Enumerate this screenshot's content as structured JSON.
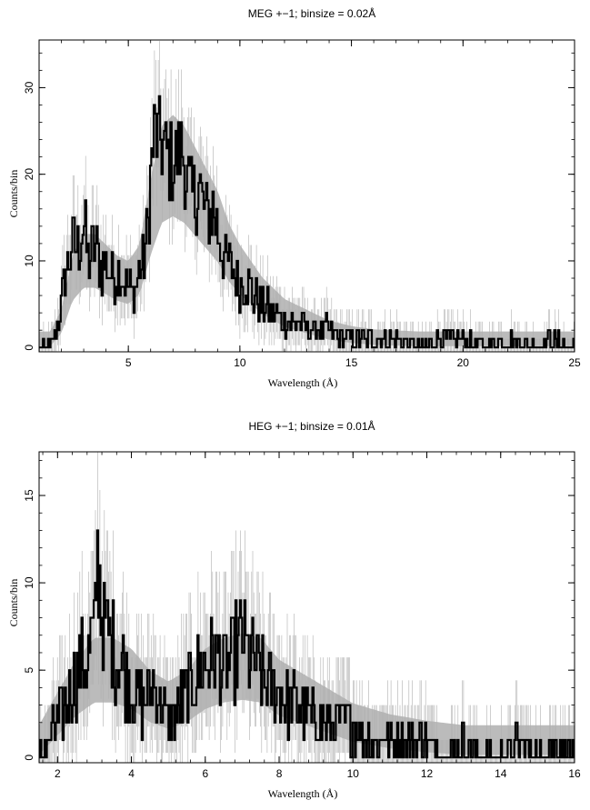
{
  "chart_data": [
    {
      "type": "line",
      "title": "MEG +−1; binsize = 0.02Å",
      "xlabel": "Wavelength (Å)",
      "ylabel": "Counts/bin",
      "xlim": [
        1.0,
        25.0
      ],
      "ylim": [
        -0.5,
        35.5
      ],
      "xticks": [
        5,
        10,
        15,
        20,
        25
      ],
      "xtick_labels": [
        "5",
        "10",
        "15",
        "20",
        "25"
      ],
      "yticks": [
        0,
        10,
        20,
        30
      ],
      "ytick_labels": [
        "0",
        "10",
        "20",
        "30"
      ],
      "grid": false,
      "series": [
        {
          "style": "histogram-step",
          "color": "#000000",
          "x": [
            1.5,
            1.9,
            2.2,
            2.5,
            2.8,
            3.0,
            3.2,
            3.5,
            3.8,
            4.0,
            4.3,
            4.6,
            5.0,
            5.3,
            5.5,
            5.7,
            5.9,
            6.0,
            6.2,
            6.4,
            6.6,
            6.8,
            7.0,
            7.2,
            7.4,
            7.6,
            7.8,
            8.0,
            8.2,
            8.4,
            8.6,
            8.8,
            9.0,
            9.2,
            9.4,
            9.7,
            10.0,
            10.3,
            10.6,
            11.0,
            11.5,
            12.0,
            12.5,
            13.0,
            13.5,
            14.0,
            14.5,
            15.0,
            15.5,
            16.0,
            17.0,
            18.0,
            19.0,
            20.0,
            21.0,
            22.0,
            23.0,
            24.0,
            25.0
          ],
          "values": [
            0,
            3,
            9,
            12,
            11,
            15,
            10,
            12,
            9,
            10,
            8,
            9,
            7,
            6,
            9,
            10,
            14,
            20,
            25,
            24,
            23,
            22,
            21,
            22,
            23,
            20,
            18,
            17,
            19,
            16,
            15,
            16,
            14,
            11,
            10,
            9,
            7,
            8,
            6,
            5,
            4,
            3,
            3,
            2,
            2,
            2,
            1,
            1,
            1,
            1,
            1,
            0,
            1,
            1,
            0,
            1,
            0,
            1,
            0
          ]
        },
        {
          "style": "model-band",
          "color": "#bbbbbb",
          "x": [
            1.5,
            2.0,
            2.5,
            3.0,
            3.5,
            4.0,
            4.5,
            5.0,
            5.5,
            6.0,
            6.5,
            7.0,
            7.5,
            8.0,
            8.5,
            9.0,
            9.5,
            10.0,
            11.0,
            12.0,
            13.0,
            14.0,
            15.0,
            16.0,
            18.0,
            20.0,
            22.0,
            24.0,
            25.0
          ],
          "values": [
            1.0,
            3.0,
            8.0,
            10.0,
            10.0,
            9.0,
            8.0,
            7.5,
            9.0,
            15.0,
            20.0,
            21.0,
            20.0,
            18.0,
            16.0,
            14.0,
            11.0,
            9.0,
            6.0,
            4.0,
            3.0,
            2.0,
            1.5,
            1.2,
            1.0,
            1.0,
            1.0,
            1.0,
            1.0
          ]
        }
      ]
    },
    {
      "type": "line",
      "title": "HEG +−1; binsize = 0.01Å",
      "xlabel": "Wavelength (Å)",
      "ylabel": "Counts/bin",
      "xlim": [
        1.5,
        16.0
      ],
      "ylim": [
        -0.3,
        17.5
      ],
      "xticks": [
        2,
        4,
        6,
        8,
        10,
        12,
        14,
        16
      ],
      "xtick_labels": [
        "2",
        "4",
        "6",
        "8",
        "10",
        "12",
        "14",
        "16"
      ],
      "yticks": [
        0,
        5,
        10,
        15
      ],
      "ytick_labels": [
        "0",
        "5",
        "10",
        "15"
      ],
      "grid": false,
      "series": [
        {
          "style": "histogram-step",
          "color": "#000000",
          "x": [
            1.5,
            1.8,
            2.0,
            2.2,
            2.4,
            2.6,
            2.8,
            3.0,
            3.1,
            3.2,
            3.4,
            3.6,
            3.8,
            4.0,
            4.3,
            4.6,
            5.0,
            5.3,
            5.6,
            5.9,
            6.2,
            6.5,
            6.8,
            7.0,
            7.2,
            7.5,
            7.8,
            8.0,
            8.3,
            8.6,
            9.0,
            9.3,
            9.6,
            10.0,
            10.5,
            11.0,
            11.5,
            12.0,
            12.5,
            13.0,
            13.5,
            14.0,
            14.5,
            15.0,
            15.5,
            16.0
          ],
          "values": [
            0,
            1,
            2,
            3,
            4,
            5,
            6,
            7,
            12,
            8,
            7,
            6,
            5,
            4,
            3,
            4,
            2,
            3,
            4,
            5,
            6,
            5,
            6,
            7,
            6,
            5,
            4,
            4,
            3,
            3,
            2,
            2,
            2,
            2,
            1,
            1,
            1,
            1,
            0,
            1,
            0,
            0,
            1,
            0,
            1,
            0
          ]
        },
        {
          "style": "model-band",
          "color": "#bbbbbb",
          "x": [
            1.5,
            2.0,
            2.5,
            3.0,
            3.5,
            4.0,
            4.5,
            5.0,
            5.5,
            6.0,
            6.5,
            7.0,
            7.5,
            8.0,
            8.5,
            9.0,
            9.5,
            10.0,
            11.0,
            12.0,
            13.0,
            14.0,
            15.0,
            16.0
          ],
          "values": [
            1.0,
            2.5,
            4.0,
            5.0,
            5.0,
            4.5,
            3.5,
            3.0,
            3.5,
            4.5,
            5.0,
            5.2,
            5.0,
            4.0,
            3.5,
            3.0,
            2.5,
            2.0,
            1.5,
            1.2,
            1.0,
            1.0,
            1.0,
            1.0
          ]
        }
      ]
    }
  ]
}
